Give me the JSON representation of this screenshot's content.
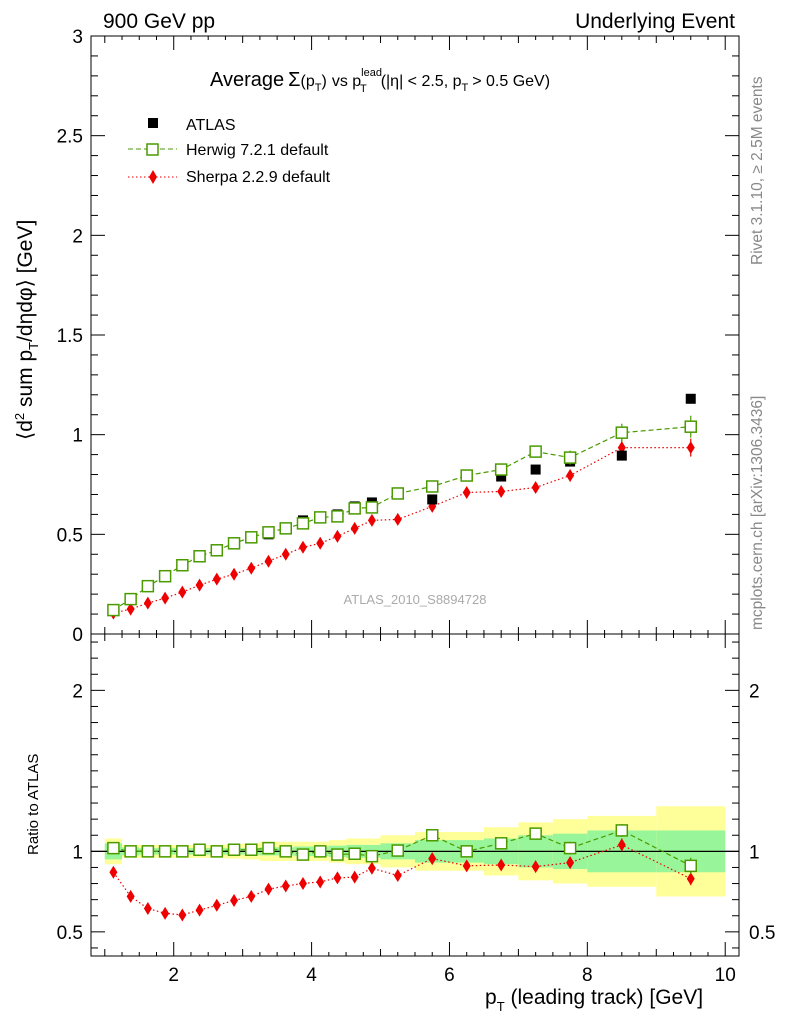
{
  "header": {
    "left": "900 GeV pp",
    "right": "Underlying Event"
  },
  "side": {
    "rivet": "Rivet 3.1.10, ≥ 2.5M events",
    "mcplots": "mcplots.cern.ch [arXiv:1306.3436]"
  },
  "watermark": "ATLAS_2010_S8894728",
  "title": {
    "prefix": "Average",
    "sigma": "Σ",
    "args": "(p",
    "args_sub": "T",
    "args_close": ")",
    "vs": "vs p",
    "lead_sup": "lead",
    "lead_sub": "T",
    "cuts": "(|η| < 2.5, p",
    "cuts_sub": "T",
    "cuts_end": "> 0.5 GeV)"
  },
  "y_axis_label": {
    "a": "⟨d",
    "a_sup": "2",
    "b": " sum p",
    "b_sub": "T",
    "c": "/dηdφ⟩ [GeV]"
  },
  "x_axis_label": {
    "a": "p",
    "a_sub": "T",
    "b": " (leading track) [GeV]"
  },
  "ratio_y_label": "Ratio to ATLAS",
  "legend": [
    {
      "label": "ATLAS",
      "color": "#000000",
      "marker": "square-filled"
    },
    {
      "label": "Herwig 7.2.1 default",
      "color": "#4a9a00",
      "marker": "square-open"
    },
    {
      "label": "Sherpa 2.2.9 default",
      "color": "#ee0000",
      "marker": "diamond-filled"
    }
  ],
  "colors": {
    "atlas": "#000000",
    "herwig": "#4a9a00",
    "sherpa": "#ee0000",
    "band_stat": "#99f599",
    "band_total": "#ffff99"
  },
  "chart_data": {
    "type": "scatter",
    "xlim": [
      0.8,
      10.2
    ],
    "main": {
      "ylim": [
        0,
        3
      ],
      "yticks": [
        0,
        0.5,
        1,
        1.5,
        2,
        2.5,
        3
      ],
      "ytick_labels": [
        "0",
        "0.5",
        "1",
        "1.5",
        "2",
        "2.5",
        "3"
      ]
    },
    "ratio": {
      "ylim": [
        0.35,
        2.35
      ],
      "yticks": [
        0.5,
        1,
        2
      ],
      "ytick_labels": [
        "0.5",
        "1",
        "2"
      ]
    },
    "xticks": [
      2,
      4,
      6,
      8,
      10
    ],
    "xtick_labels": [
      "2",
      "4",
      "6",
      "8",
      "10"
    ],
    "x_bins": [
      [
        1.0,
        1.25
      ],
      [
        1.25,
        1.5
      ],
      [
        1.5,
        1.75
      ],
      [
        1.75,
        2.0
      ],
      [
        2.0,
        2.25
      ],
      [
        2.25,
        2.5
      ],
      [
        2.5,
        2.75
      ],
      [
        2.75,
        3.0
      ],
      [
        3.0,
        3.25
      ],
      [
        3.25,
        3.5
      ],
      [
        3.5,
        3.75
      ],
      [
        3.75,
        4.0
      ],
      [
        4.0,
        4.25
      ],
      [
        4.25,
        4.5
      ],
      [
        4.5,
        4.75
      ],
      [
        4.75,
        5.0
      ],
      [
        5.0,
        5.5
      ],
      [
        5.5,
        6.0
      ],
      [
        6.0,
        6.5
      ],
      [
        6.5,
        7.0
      ],
      [
        7.0,
        7.5
      ],
      [
        7.5,
        8.0
      ],
      [
        8.0,
        9.0
      ],
      [
        9.0,
        10.0
      ]
    ],
    "x": [
      1.125,
      1.375,
      1.625,
      1.875,
      2.125,
      2.375,
      2.625,
      2.875,
      3.125,
      3.375,
      3.625,
      3.875,
      4.125,
      4.375,
      4.625,
      4.875,
      5.25,
      5.75,
      6.25,
      6.75,
      7.25,
      7.75,
      8.5,
      9.5
    ],
    "series": [
      {
        "name": "ATLAS",
        "values": [
          0.12,
          0.175,
          0.24,
          0.29,
          0.345,
          0.385,
          0.42,
          0.45,
          0.48,
          0.5,
          0.53,
          0.57,
          0.585,
          0.6,
          0.64,
          0.66,
          0.7,
          0.675,
          0.795,
          0.79,
          0.825,
          0.865,
          0.895,
          1.18
        ]
      },
      {
        "name": "Herwig 7.2.1 default",
        "values": [
          0.12,
          0.175,
          0.24,
          0.29,
          0.345,
          0.39,
          0.42,
          0.455,
          0.485,
          0.51,
          0.53,
          0.555,
          0.585,
          0.59,
          0.63,
          0.635,
          0.705,
          0.74,
          0.795,
          0.825,
          0.915,
          0.885,
          1.01,
          1.04
        ],
        "errors": [
          0.005,
          0.005,
          0.005,
          0.005,
          0.005,
          0.006,
          0.006,
          0.007,
          0.007,
          0.008,
          0.008,
          0.009,
          0.01,
          0.011,
          0.012,
          0.013,
          0.012,
          0.015,
          0.016,
          0.019,
          0.03,
          0.035,
          0.045,
          0.055
        ]
      },
      {
        "name": "Sherpa 2.2.9 default",
        "values": [
          0.105,
          0.125,
          0.155,
          0.18,
          0.21,
          0.245,
          0.275,
          0.3,
          0.33,
          0.365,
          0.4,
          0.435,
          0.455,
          0.49,
          0.53,
          0.57,
          0.575,
          0.64,
          0.71,
          0.715,
          0.735,
          0.795,
          0.935,
          0.935
        ],
        "errors": [
          0.004,
          0.004,
          0.004,
          0.005,
          0.005,
          0.005,
          0.006,
          0.006,
          0.006,
          0.007,
          0.007,
          0.008,
          0.009,
          0.01,
          0.011,
          0.012,
          0.012,
          0.015,
          0.015,
          0.018,
          0.025,
          0.03,
          0.04,
          0.045
        ]
      }
    ],
    "ratio_series": [
      {
        "name": "Herwig 7.2.1 default",
        "values": [
          1.02,
          1.0,
          1.0,
          1.0,
          1.0,
          1.01,
          1.0,
          1.01,
          1.01,
          1.02,
          1.0,
          0.98,
          1.0,
          0.98,
          0.985,
          0.97,
          1.005,
          1.1,
          1.0,
          1.05,
          1.11,
          1.02,
          1.13,
          0.91
        ],
        "errors": [
          0.01,
          0.01,
          0.01,
          0.01,
          0.01,
          0.01,
          0.01,
          0.01,
          0.01,
          0.01,
          0.01,
          0.01,
          0.015,
          0.015,
          0.015,
          0.02,
          0.02,
          0.025,
          0.02,
          0.025,
          0.035,
          0.04,
          0.04,
          0.05
        ]
      },
      {
        "name": "Sherpa 2.2.9 default",
        "values": [
          0.87,
          0.72,
          0.645,
          0.615,
          0.605,
          0.635,
          0.665,
          0.695,
          0.72,
          0.765,
          0.785,
          0.8,
          0.81,
          0.835,
          0.84,
          0.895,
          0.85,
          0.955,
          0.91,
          0.915,
          0.905,
          0.93,
          1.04,
          0.83
        ],
        "errors": [
          0.01,
          0.01,
          0.01,
          0.01,
          0.01,
          0.01,
          0.01,
          0.01,
          0.01,
          0.01,
          0.01,
          0.01,
          0.012,
          0.013,
          0.014,
          0.016,
          0.016,
          0.02,
          0.02,
          0.022,
          0.03,
          0.035,
          0.04,
          0.04
        ]
      }
    ],
    "ratio_band_stat": [
      0.05,
      0.025,
      0.02,
      0.02,
      0.02,
      0.02,
      0.02,
      0.02,
      0.02,
      0.025,
      0.025,
      0.03,
      0.03,
      0.035,
      0.04,
      0.04,
      0.05,
      0.07,
      0.07,
      0.08,
      0.1,
      0.11,
      0.13,
      0.13
    ],
    "ratio_band_total": [
      0.08,
      0.04,
      0.04,
      0.04,
      0.04,
      0.04,
      0.04,
      0.045,
      0.05,
      0.06,
      0.06,
      0.06,
      0.06,
      0.07,
      0.08,
      0.08,
      0.1,
      0.12,
      0.12,
      0.15,
      0.18,
      0.2,
      0.22,
      0.28
    ]
  }
}
